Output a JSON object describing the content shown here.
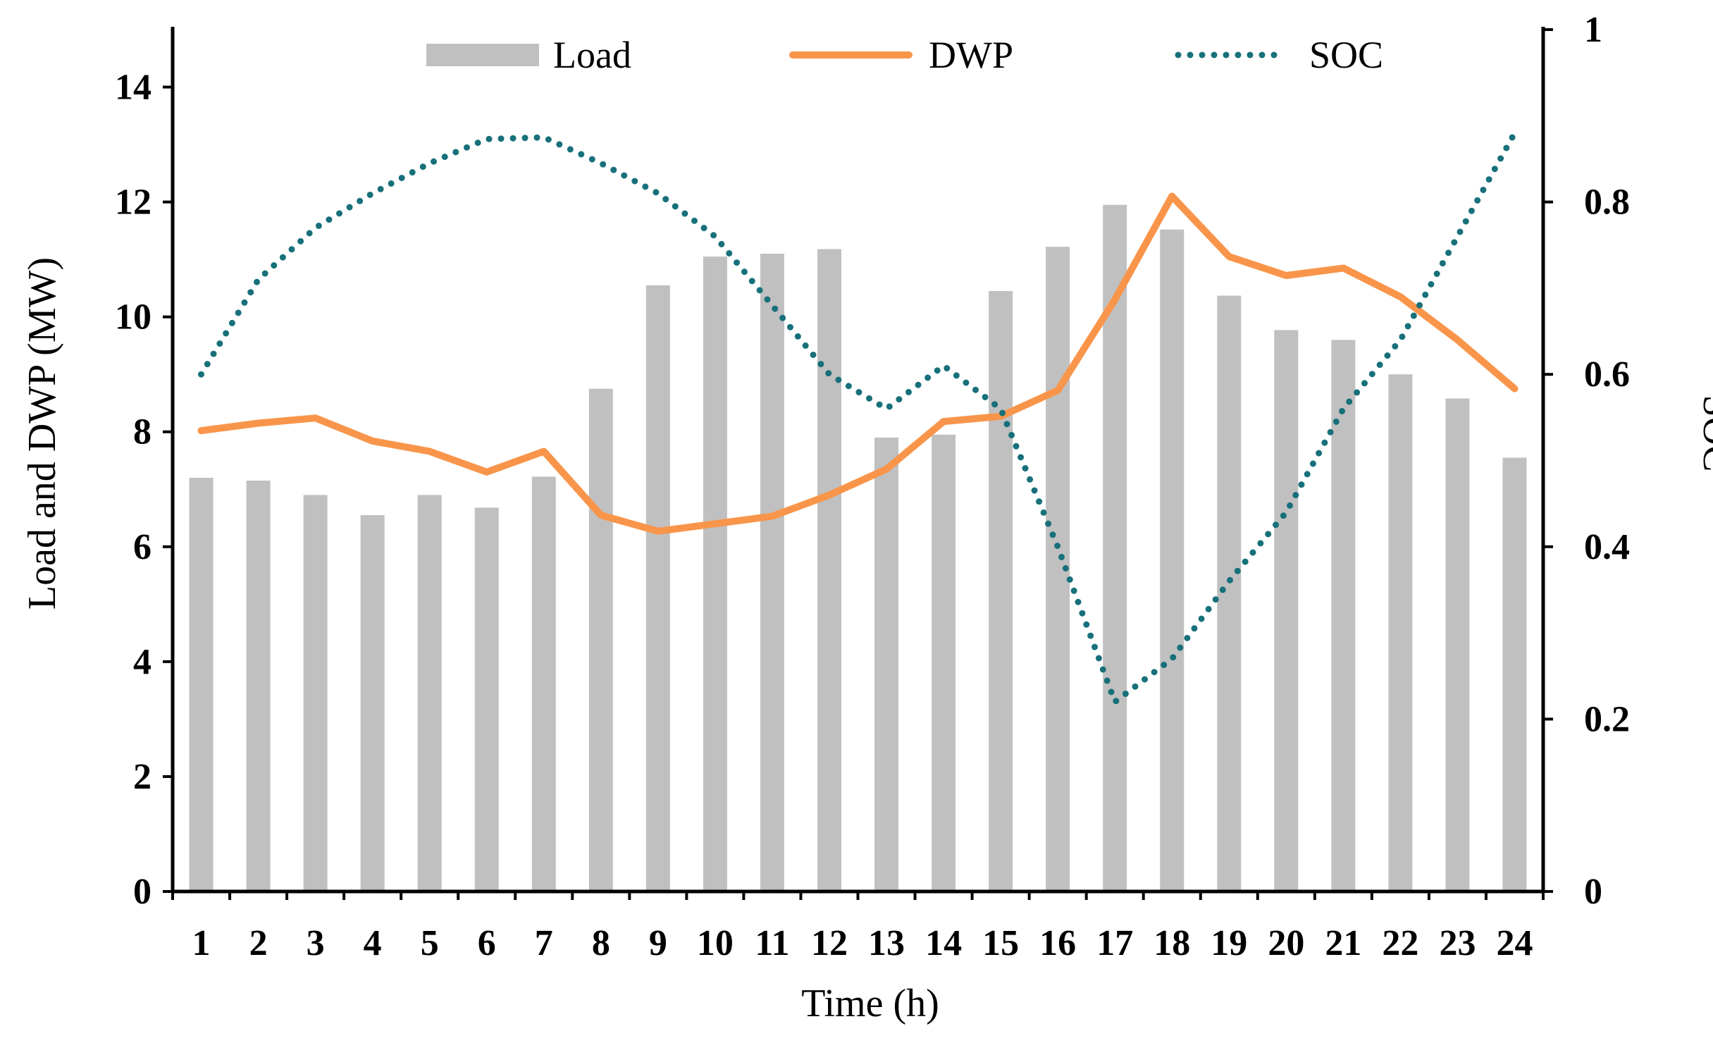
{
  "chart_data": {
    "type": "bar+line",
    "title": "",
    "xlabel": "Time (h)",
    "ylabel": "Load and DWP (MW)",
    "y2label": "SOC",
    "categories": [
      "1",
      "2",
      "3",
      "4",
      "5",
      "6",
      "7",
      "8",
      "9",
      "10",
      "11",
      "12",
      "13",
      "14",
      "15",
      "16",
      "17",
      "18",
      "19",
      "20",
      "21",
      "22",
      "23",
      "24"
    ],
    "ylim": [
      0,
      15
    ],
    "y2lim": [
      0,
      1
    ],
    "yticks": [
      "0",
      "2",
      "4",
      "6",
      "8",
      "10",
      "12",
      "14"
    ],
    "y2ticks": [
      "0",
      "0.2",
      "0.4",
      "0.6",
      "0.8",
      "1"
    ],
    "legend_position": "top",
    "series": [
      {
        "name": "Load",
        "kind": "bar",
        "axis": "left",
        "color": "#c0c0c0",
        "values": [
          7.2,
          7.15,
          6.9,
          6.55,
          6.9,
          6.68,
          7.22,
          8.75,
          10.55,
          11.05,
          11.1,
          11.18,
          7.9,
          7.95,
          10.45,
          11.22,
          11.95,
          11.52,
          10.37,
          9.77,
          9.6,
          9.0,
          8.58,
          7.55
        ]
      },
      {
        "name": "DWP",
        "kind": "line",
        "axis": "left",
        "color": "#f9954a",
        "values": [
          8.02,
          8.15,
          8.24,
          7.84,
          7.66,
          7.3,
          7.66,
          6.55,
          6.27,
          6.4,
          6.53,
          6.9,
          7.35,
          8.18,
          8.27,
          8.72,
          10.3,
          12.1,
          11.05,
          10.72,
          10.85,
          10.35,
          9.6,
          8.75
        ]
      },
      {
        "name": "SOC",
        "kind": "line",
        "style": "dotted",
        "axis": "right",
        "color": "#17707a",
        "values": [
          0.6,
          0.71,
          0.77,
          0.81,
          0.845,
          0.873,
          0.875,
          0.845,
          0.81,
          0.76,
          0.68,
          0.6,
          0.56,
          0.61,
          0.56,
          0.4,
          0.22,
          0.27,
          0.36,
          0.44,
          0.56,
          0.64,
          0.76,
          0.88
        ]
      }
    ]
  }
}
